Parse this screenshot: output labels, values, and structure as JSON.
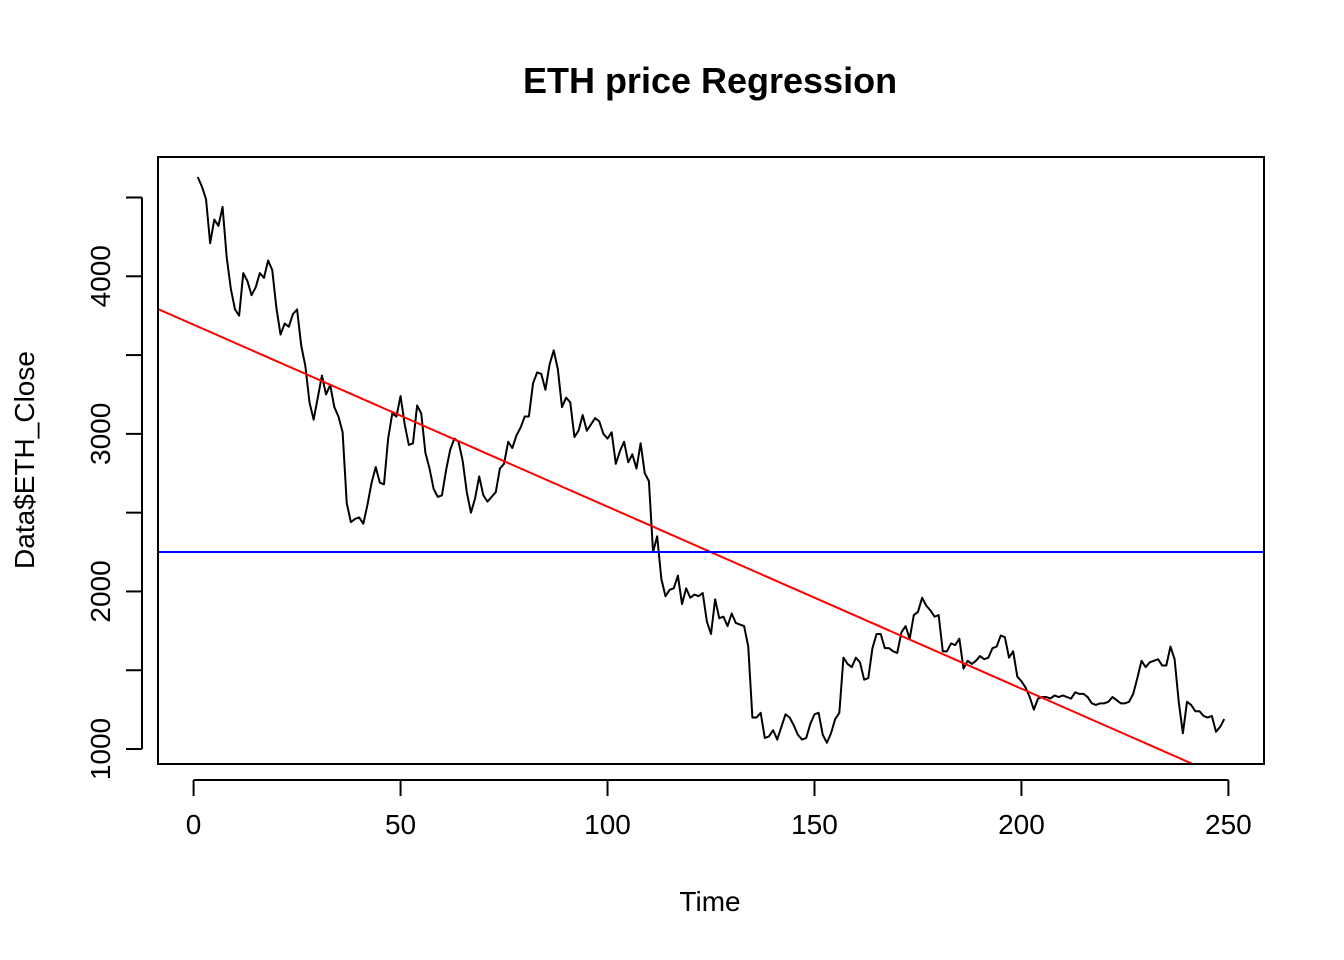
{
  "chart_data": {
    "type": "line",
    "title": "ETH price Regression",
    "xlabel": "Time",
    "ylabel": "Data$ETH_Close",
    "xlim": [
      -8.6,
      258.6
    ],
    "ylim": [
      905,
      4757
    ],
    "xticks": [
      0,
      50,
      100,
      150,
      200,
      250
    ],
    "yticks": [
      1000,
      1500,
      2000,
      2500,
      3000,
      3500,
      4000,
      4500
    ],
    "ytick_labels": [
      "1000",
      "",
      "2000",
      "",
      "3000",
      "",
      "4000",
      ""
    ],
    "grid": false,
    "series": [
      {
        "color": "#000000",
        "x_start": 1,
        "values": [
          4630,
          4570,
          4490,
          4210,
          4360,
          4320,
          4440,
          4120,
          3920,
          3790,
          3750,
          4020,
          3970,
          3880,
          3930,
          4020,
          3990,
          4100,
          4040,
          3800,
          3630,
          3700,
          3680,
          3760,
          3790,
          3560,
          3430,
          3200,
          3090,
          3230,
          3370,
          3250,
          3310,
          3170,
          3110,
          3010,
          2560,
          2440,
          2460,
          2470,
          2430,
          2550,
          2690,
          2790,
          2690,
          2680,
          2970,
          3130,
          3110,
          3240,
          3060,
          2930,
          2940,
          3180,
          3130,
          2880,
          2780,
          2650,
          2600,
          2610,
          2770,
          2900,
          2970,
          2950,
          2830,
          2630,
          2500,
          2590,
          2730,
          2610,
          2570,
          2600,
          2630,
          2780,
          2810,
          2950,
          2910,
          2990,
          3040,
          3110,
          3110,
          3320,
          3390,
          3380,
          3280,
          3440,
          3530,
          3410,
          3170,
          3230,
          3200,
          2980,
          3020,
          3120,
          3020,
          3060,
          3100,
          3080,
          3000,
          2970,
          3010,
          2810,
          2890,
          2950,
          2820,
          2870,
          2780,
          2940,
          2750,
          2700,
          2250,
          2350,
          2080,
          1970,
          2010,
          2020,
          2100,
          1920,
          2020,
          1960,
          1980,
          1970,
          1990,
          1810,
          1730,
          1950,
          1830,
          1840,
          1780,
          1860,
          1800,
          1790,
          1780,
          1650,
          1200,
          1200,
          1230,
          1070,
          1080,
          1120,
          1060,
          1140,
          1220,
          1200,
          1150,
          1090,
          1060,
          1070,
          1160,
          1220,
          1230,
          1090,
          1040,
          1100,
          1190,
          1230,
          1580,
          1540,
          1520,
          1580,
          1550,
          1440,
          1450,
          1640,
          1730,
          1730,
          1640,
          1640,
          1620,
          1610,
          1740,
          1780,
          1700,
          1850,
          1870,
          1960,
          1910,
          1880,
          1840,
          1850,
          1620,
          1620,
          1670,
          1660,
          1700,
          1510,
          1560,
          1540,
          1560,
          1590,
          1570,
          1580,
          1640,
          1650,
          1720,
          1710,
          1580,
          1620,
          1460,
          1430,
          1390,
          1330,
          1250,
          1320,
          1330,
          1330,
          1320,
          1340,
          1330,
          1340,
          1330,
          1320,
          1360,
          1350,
          1350,
          1330,
          1290,
          1280,
          1290,
          1290,
          1300,
          1330,
          1310,
          1290,
          1290,
          1300,
          1350,
          1450,
          1560,
          1520,
          1550,
          1560,
          1570,
          1530,
          1530,
          1650,
          1570,
          1300,
          1100,
          1300,
          1280,
          1240,
          1240,
          1210,
          1200,
          1210,
          1110,
          1140,
          1190
        ]
      },
      {
        "type": "abline",
        "color": "#ff0000",
        "intercept": 3693,
        "slope": -11.55
      },
      {
        "type": "hline",
        "color": "#0000ff",
        "y": 2250
      }
    ]
  }
}
